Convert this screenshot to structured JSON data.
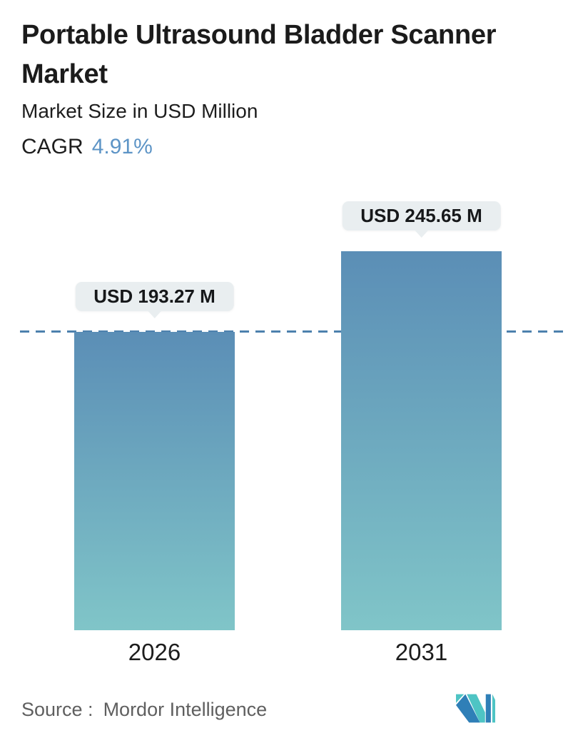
{
  "header": {
    "title_lines": [
      "Portable Ultrasound Bladder Scanner",
      "Market"
    ],
    "subtitle": "Market Size in USD Million",
    "cagr_label": "CAGR",
    "cagr_value": "4.91%"
  },
  "chart_data": {
    "type": "bar",
    "title": "Portable Ultrasound Bladder Scanner Market",
    "ylabel": "Market Size in USD Million",
    "xlabel": "",
    "cagr_percent": 4.91,
    "categories": [
      "2026",
      "2031"
    ],
    "values": [
      193.27,
      245.65
    ],
    "value_labels": [
      "USD 193.27 M",
      "USD 245.65 M"
    ],
    "reference_line": {
      "style": "dashed",
      "orientation": "horizontal",
      "at_value": 193.27
    },
    "ylim": [
      0,
      245.65
    ],
    "grid": false,
    "legend": false
  },
  "colors": {
    "cagr_blue": "#5d94c6",
    "bar_gradient_top": "#5b8eb6",
    "bar_gradient_bottom": "#80c5c8",
    "dashed_line": "#4d81ad",
    "bubble_bg": "#e9eef0",
    "title_text": "#1b1b1b",
    "source_text": "#5f5f5f",
    "logo_blue": "#2f7fb7",
    "logo_teal": "#4ec4c4"
  },
  "footer": {
    "source_label": "Source :",
    "source_name": "Mordor Intelligence",
    "logo_icon": "mordor-intelligence-logo"
  }
}
